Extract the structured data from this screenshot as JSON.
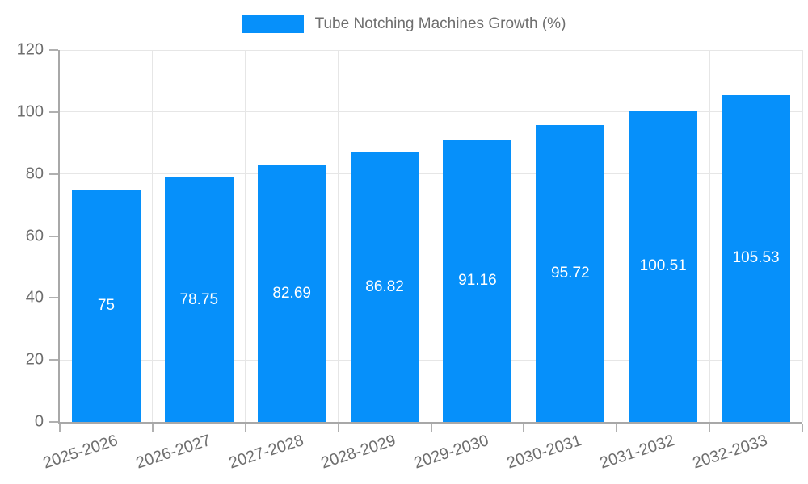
{
  "chart_data": {
    "type": "bar",
    "legend": {
      "label": "Tube Notching Machines Growth (%)",
      "position": "top"
    },
    "categories": [
      "2025-2026",
      "2026-2027",
      "2027-2028",
      "2028-2029",
      "2029-2030",
      "2030-2031",
      "2031-2032",
      "2032-2033"
    ],
    "values": [
      75,
      78.75,
      82.69,
      86.82,
      91.16,
      95.72,
      100.51,
      105.53
    ],
    "value_labels": [
      "75",
      "78.75",
      "82.69",
      "86.82",
      "91.16",
      "95.72",
      "100.51",
      "105.53"
    ],
    "ylim": [
      0,
      120
    ],
    "yticks": [
      0,
      20,
      40,
      60,
      80,
      100,
      120
    ],
    "grid": true,
    "xlabel_rotation_deg": -18,
    "colors": {
      "bar": "#0690fa",
      "bar_value_text": "#ffffff",
      "axis": "#a8a8a8",
      "tick": "#b0b0b0",
      "grid": "#e6e6e6",
      "text": "#6e6e6e"
    }
  }
}
